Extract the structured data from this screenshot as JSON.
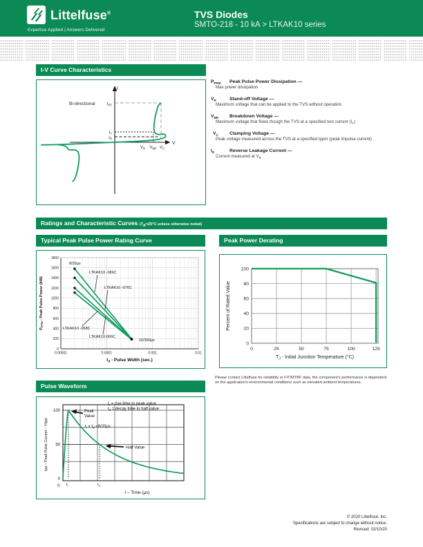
{
  "colors": {
    "brand_green": "#0b8a55",
    "line_green": "#0e9c5b"
  },
  "header": {
    "brand": "Littelfuse",
    "reg": "®",
    "tagline": "Expertise Applied | Answers Delivered",
    "title": "TVS Diodes",
    "subtitle": "SMTO-218 - 10 kA > LTKAK10 series"
  },
  "sections": {
    "iv_title": "I-V Curve Characteristics",
    "ratings_title": "Ratings and Characteristic Curves ",
    "ratings_note_pre": "(T",
    "ratings_note_sub": "A",
    "ratings_note_post": "=25°C unless otherwise noted)",
    "chart1_title": "Typical Peak Pulse Power Rating Curve",
    "chart2_title": "Peak Power Derating",
    "chart3_title": "Pulse Waveform"
  },
  "iv": {
    "bidirectional": "Bi-directional",
    "axis_i": "I",
    "axis_v": "V",
    "ipp": [
      "I",
      "PP"
    ],
    "it": [
      "I",
      "T"
    ],
    "ir": [
      "I",
      "R"
    ],
    "vr": [
      "V",
      "R"
    ],
    "vbr": [
      "V",
      "BR"
    ],
    "vc": [
      "V",
      "C"
    ]
  },
  "definitions": [
    {
      "sym": "P",
      "sub": "PPM",
      "title": "Peak Pulse Power Dissipation —",
      "desc": "Max power dissipation",
      "dsub": "",
      "dend": ""
    },
    {
      "sym": "V",
      "sub": "R",
      "title": "Stand-off Voltage —",
      "desc": "Maximum voltage that can be applied to the TVS without operation",
      "dsub": "",
      "dend": ""
    },
    {
      "sym": "V",
      "sub": "BR",
      "title": "Breakdown Voltage —",
      "desc": "Maximum voltage that flows though the TVS at a specified test current (I",
      "dsub": "T",
      "dend": ")"
    },
    {
      "sym": "V",
      "sub": "C",
      "title": "Clamping Voltage —",
      "desc": "Peak voltage measured across the TVS at a specified Ippm (peak impulse current)",
      "dsub": "",
      "dend": ""
    },
    {
      "sym": "I",
      "sub": "R",
      "title": "Reverse Leakage Current —",
      "desc": "Current measured at V",
      "dsub": "R",
      "dend": ""
    }
  ],
  "derating_note": "Please contact Littelfuse for reliability or FIT/MTBF data, the component's performance is dependent on the application's environmental conditions such as elevated ambient temperatures.",
  "footer": {
    "line1": "© 2020 Littelfuse, Inc.",
    "line2": "Specifications are subject to change without notice.",
    "line3": "Revised: 02/10/20"
  },
  "chart_data": [
    {
      "id": "pppm_rating",
      "type": "line",
      "title": "Typical Peak Pulse Power Rating Curve",
      "x_scale": "log",
      "xlim": [
        1e-05,
        0.01
      ],
      "ylim": [
        0,
        1800
      ],
      "ytick_step": 200,
      "xticks": [
        {
          "v": 1e-05,
          "label": "0.00001"
        },
        {
          "v": 0.0001,
          "label": "0.0001"
        },
        {
          "v": 0.001,
          "label": "0.001"
        },
        {
          "v": 0.01,
          "label": "0.01"
        }
      ],
      "xlabel": {
        "sym": "t",
        "sub": "d",
        "rest": " - Pulse Width (sec.)"
      },
      "ylabel": {
        "sym": "P",
        "sub": "PPM",
        "rest": " - Peak Pulse Power (kW)"
      },
      "series": [
        {
          "name": "LTKAK10 -086C",
          "points": [
            [
              2e-05,
              1580
            ],
            [
              0.00035,
              196
            ]
          ]
        },
        {
          "name": "LTKAK10 -076C",
          "points": [
            [
              2e-05,
              1400
            ],
            [
              0.00035,
              192
            ]
          ]
        },
        {
          "name": "LTKAK10-066C",
          "points": [
            [
              2e-05,
              1200
            ],
            [
              0.00035,
              188
            ]
          ]
        },
        {
          "name": "LTKAK10 -058C",
          "points": [
            [
              2e-05,
              1110
            ],
            [
              0.00035,
              184
            ]
          ]
        }
      ],
      "annotations": [
        {
          "text": "8/20μs"
        },
        {
          "text": "10/350μs"
        }
      ],
      "grid": true,
      "legend_position": "inline-labels"
    },
    {
      "id": "derating",
      "type": "line",
      "title": "Peak Power Derating",
      "xlim": [
        0,
        127
      ],
      "ylim": [
        0,
        100
      ],
      "xticks": [
        0,
        25,
        50,
        75,
        100,
        125
      ],
      "yticks": [
        0,
        20,
        40,
        60,
        80,
        100
      ],
      "xlabel": {
        "sym": "T",
        "sub": "J",
        "rest": " - Initial Junction Temperature (°C)"
      },
      "ylabel": "Percent of Rated Value",
      "points": [
        [
          0,
          100
        ],
        [
          75,
          100
        ],
        [
          125,
          81
        ],
        [
          125,
          1
        ]
      ],
      "grid": true
    },
    {
      "id": "pulse_waveform",
      "type": "line",
      "title": "Pulse Waveform",
      "xlabel": "t – Time (μs)",
      "ylabel": "Ipp – Peak Pulse Current – %Ipp",
      "yticks": [
        "0",
        "50",
        "100"
      ],
      "origin": "0",
      "xtick_tr": [
        "t",
        "r"
      ],
      "xtick_td": [
        "t",
        "d"
      ],
      "legend1": [
        "t",
        "r",
        " = rise time to peak value"
      ],
      "legend2": [
        "t",
        "d",
        " = decay time to half value"
      ],
      "formula": [
        "t",
        "r",
        " x t",
        "d",
        " =8/20μs"
      ],
      "peak_label_1": "Peak",
      "peak_label_2": "Value",
      "half_label": "Half Value",
      "curve": {
        "peak_pct": 100,
        "half_pct": 50,
        "end_pct": 8,
        "waveshape": "8/20μs"
      },
      "grid": true
    }
  ]
}
